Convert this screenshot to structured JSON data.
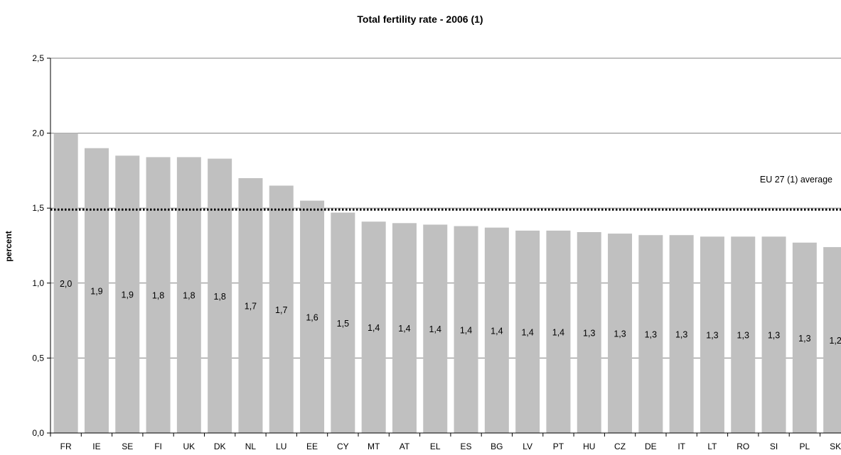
{
  "chart_data": {
    "type": "bar",
    "title": "Total fertility rate - 2006 (1)",
    "xlabel": "",
    "ylabel": "percent",
    "ylim": [
      0,
      2.5
    ],
    "yticks": [
      "0,0",
      "0,5",
      "1,0",
      "1,5",
      "2,0",
      "2,5"
    ],
    "ytick_values": [
      0,
      0.5,
      1.0,
      1.5,
      2.0,
      2.5
    ],
    "grid": true,
    "categories": [
      "FR",
      "IE",
      "SE",
      "FI",
      "UK",
      "DK",
      "NL",
      "LU",
      "EE",
      "CY",
      "MT",
      "AT",
      "EL",
      "ES",
      "BG",
      "LV",
      "PT",
      "HU",
      "CZ",
      "DE",
      "IT",
      "LT",
      "RO",
      "SI",
      "PL",
      "SK"
    ],
    "values": [
      2.0,
      1.9,
      1.85,
      1.84,
      1.84,
      1.83,
      1.7,
      1.65,
      1.55,
      1.47,
      1.41,
      1.4,
      1.39,
      1.38,
      1.37,
      1.35,
      1.35,
      1.34,
      1.33,
      1.32,
      1.32,
      1.31,
      1.31,
      1.31,
      1.27,
      1.24
    ],
    "data_labels": [
      "2,0",
      "1,9",
      "1,9",
      "1,8",
      "1,8",
      "1,8",
      "1,7",
      "1,7",
      "1,6",
      "1,5",
      "1,4",
      "1,4",
      "1,4",
      "1,4",
      "1,4",
      "1,4",
      "1,4",
      "1,3",
      "1,3",
      "1,3",
      "1,3",
      "1,3",
      "1,3",
      "1,3",
      "1,3",
      "1,2"
    ],
    "reference_line": {
      "label": "EU 27 (1) average",
      "value": 1.49,
      "style": "dotted"
    },
    "bar_color": "#c0c0c0",
    "gridline_color": "#808080"
  }
}
